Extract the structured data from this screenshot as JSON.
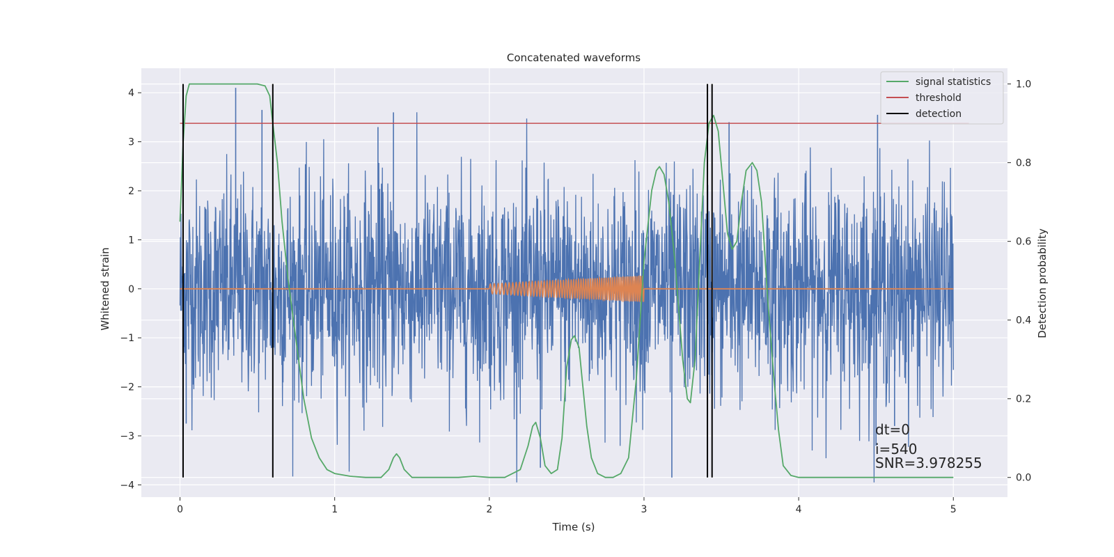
{
  "chart_data": {
    "type": "line",
    "title": "Concatenated waveforms",
    "xlabel": "Time (s)",
    "ylabel": "Whitened strain",
    "ylabel_right": "Detection probability",
    "xlim": [
      -0.25,
      5.35
    ],
    "ylim": [
      -4.25,
      4.5
    ],
    "ylim_right": [
      -0.05,
      1.04
    ],
    "x_ticks": [
      0,
      1,
      2,
      3,
      4,
      5
    ],
    "y_ticks": [
      -4,
      -3,
      -2,
      -1,
      0,
      1,
      2,
      3,
      4
    ],
    "y_ticks_right": [
      0.0,
      0.2,
      0.4,
      0.6,
      0.8,
      1.0
    ],
    "grid": true,
    "legend_position": "top-right",
    "legend": [
      "signal statistics",
      "threshold",
      "detection"
    ],
    "colors": {
      "strain": "#4c72b0",
      "injection": "#dd8452",
      "signal_statistics": "#55a868",
      "threshold": "#c44e52",
      "detection": "#000000",
      "plot_bg": "#eaeaf2",
      "grid": "#ffffff"
    },
    "strain": {
      "x_start": 0,
      "x_end": 5,
      "typical_amplitude": 1.1,
      "spikes": [
        {
          "x": 0.36,
          "y": 4.1
        },
        {
          "x": 0.53,
          "y": 3.65
        },
        {
          "x": 1.28,
          "y": 3.3
        },
        {
          "x": 1.38,
          "y": 3.6
        },
        {
          "x": 3.55,
          "y": 3.4
        },
        {
          "x": 4.51,
          "y": 3.55
        },
        {
          "x": 0.04,
          "y": -2.75
        },
        {
          "x": 2.33,
          "y": -3.65
        },
        {
          "x": 3.18,
          "y": -3.85
        },
        {
          "x": 4.5,
          "y": -3.2
        },
        {
          "x": 4.62,
          "y": -2.8
        }
      ]
    },
    "injection": {
      "x_start": 2.0,
      "x_end": 3.0,
      "amplitude_start": 0.1,
      "amplitude_end": 0.27
    },
    "signal_statistics": {
      "x": [
        0.0,
        0.02,
        0.04,
        0.06,
        0.1,
        0.2,
        0.3,
        0.4,
        0.5,
        0.55,
        0.58,
        0.6,
        0.63,
        0.66,
        0.7,
        0.75,
        0.8,
        0.85,
        0.9,
        0.95,
        1.0,
        1.1,
        1.2,
        1.3,
        1.35,
        1.38,
        1.4,
        1.42,
        1.45,
        1.5,
        1.6,
        1.8,
        1.9,
        2.0,
        2.1,
        2.2,
        2.25,
        2.28,
        2.3,
        2.33,
        2.36,
        2.4,
        2.44,
        2.47,
        2.5,
        2.53,
        2.55,
        2.58,
        2.6,
        2.63,
        2.66,
        2.7,
        2.75,
        2.8,
        2.85,
        2.9,
        2.95,
        3.0,
        3.05,
        3.08,
        3.1,
        3.13,
        3.16,
        3.2,
        3.25,
        3.28,
        3.3,
        3.33,
        3.36,
        3.39,
        3.42,
        3.45,
        3.48,
        3.51,
        3.54,
        3.57,
        3.6,
        3.63,
        3.66,
        3.7,
        3.73,
        3.76,
        3.8,
        3.84,
        3.87,
        3.9,
        3.95,
        4.0,
        4.5,
        5.0
      ],
      "values": [
        0.65,
        0.85,
        0.97,
        1.0,
        1.0,
        1.0,
        1.0,
        1.0,
        1.0,
        0.995,
        0.97,
        0.9,
        0.8,
        0.65,
        0.5,
        0.35,
        0.2,
        0.1,
        0.05,
        0.02,
        0.01,
        0.003,
        0.0,
        0.0,
        0.02,
        0.05,
        0.06,
        0.05,
        0.02,
        0.0,
        0.0,
        0.0,
        0.003,
        0.0,
        0.0,
        0.02,
        0.08,
        0.13,
        0.14,
        0.1,
        0.03,
        0.01,
        0.02,
        0.1,
        0.28,
        0.35,
        0.36,
        0.33,
        0.25,
        0.13,
        0.05,
        0.01,
        0.0,
        0.0,
        0.01,
        0.05,
        0.25,
        0.55,
        0.73,
        0.78,
        0.79,
        0.77,
        0.7,
        0.55,
        0.3,
        0.2,
        0.19,
        0.3,
        0.55,
        0.8,
        0.9,
        0.92,
        0.88,
        0.75,
        0.62,
        0.58,
        0.6,
        0.7,
        0.78,
        0.8,
        0.78,
        0.7,
        0.45,
        0.25,
        0.12,
        0.03,
        0.005,
        0.0,
        0.0,
        0.0
      ]
    },
    "threshold": {
      "value": 0.9,
      "x_start": 0.0,
      "x_end": 5.1
    },
    "detections": [
      0.02,
      0.6,
      3.41,
      3.44
    ],
    "annotations": [
      "dt=0",
      "i=540",
      "SNR=3.978255"
    ]
  }
}
